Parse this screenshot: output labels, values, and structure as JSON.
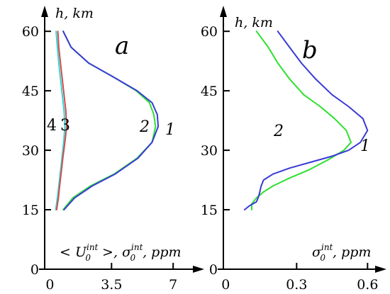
{
  "chart_data": [
    {
      "panel": "a",
      "type": "line",
      "ylabel": "h, km",
      "xlabel": "< U_0^int >, σ_0^int , ppm",
      "xlabel_parts": {
        "lt": "< ",
        "u": "U",
        "u_sub": "0",
        "u_sup": "int",
        "mid": " >, ",
        "s": "σ",
        "s_sub": "0",
        "s_sup": "int",
        "tail": ", ppm"
      },
      "xticks": [
        "0",
        "3.5",
        "7"
      ],
      "xtick_values": [
        0,
        3.5,
        7
      ],
      "yticks": [
        "0",
        "15",
        "30",
        "45",
        "60"
      ],
      "ytick_values": [
        0,
        15,
        30,
        45,
        60
      ],
      "xlim": [
        -0.3,
        8.0
      ],
      "ylim": [
        0,
        62
      ],
      "curve_labels": [
        "4",
        "3",
        "2",
        "1"
      ],
      "series": [
        {
          "label": "1",
          "color": "#3a3ad6",
          "x": [
            0.8,
            1.4,
            2.4,
            3.7,
            5.0,
            5.8,
            6.15,
            6.1,
            5.8,
            4.95,
            3.6,
            2.2,
            1.2,
            0.75
          ],
          "y": [
            15,
            18,
            21,
            24,
            28,
            32,
            36,
            39,
            42,
            45,
            48.5,
            52,
            56,
            60
          ]
        },
        {
          "label": "2",
          "color": "#2ee02e",
          "x": [
            0.75,
            1.3,
            2.3,
            3.65,
            4.95,
            5.8,
            6.0,
            5.9,
            5.65,
            4.9,
            3.6,
            2.2,
            1.2,
            0.75
          ],
          "y": [
            15,
            18,
            21,
            24,
            28,
            32,
            36,
            39,
            42,
            45,
            48.5,
            52,
            56,
            60
          ]
        },
        {
          "label": "3",
          "color": "#d84a4a",
          "x": [
            0.38,
            0.48,
            0.55,
            0.63,
            0.73,
            0.85,
            0.95,
            0.9,
            0.8,
            0.7,
            0.6,
            0.5,
            0.45
          ],
          "y": [
            15,
            18,
            21,
            24,
            28,
            32,
            36,
            40,
            44,
            48,
            52,
            56,
            60
          ]
        },
        {
          "label": "4",
          "color": "#33d6d6",
          "x": [
            0.33,
            0.42,
            0.5,
            0.58,
            0.68,
            0.78,
            0.85,
            0.8,
            0.7,
            0.6,
            0.5,
            0.42,
            0.35
          ],
          "y": [
            15,
            18,
            21,
            24,
            28,
            32,
            36,
            40,
            44,
            48,
            52,
            56,
            60
          ]
        }
      ]
    },
    {
      "panel": "b",
      "type": "line",
      "ylabel": "h, km",
      "xlabel": "σ_0^int , ppm",
      "xlabel_parts": {
        "s": "σ",
        "s_sub": "0",
        "s_sup": "int",
        "tail": ", ppm"
      },
      "xticks": [
        "0",
        "0.3",
        "0.6"
      ],
      "xtick_values": [
        0,
        0.3,
        0.6
      ],
      "yticks": [
        "0",
        "15",
        "30",
        "45",
        "60"
      ],
      "ytick_values": [
        0,
        15,
        30,
        45,
        60
      ],
      "xlim": [
        -0.01,
        0.68
      ],
      "ylim": [
        0,
        62
      ],
      "curve_labels": [
        "2",
        "1"
      ],
      "series": [
        {
          "label": "1",
          "color": "#3a3ad6",
          "x": [
            0.08,
            0.1,
            0.13,
            0.14,
            0.15,
            0.16,
            0.2,
            0.27,
            0.36,
            0.45,
            0.52,
            0.57,
            0.6,
            0.58,
            0.52,
            0.45,
            0.38,
            0.32,
            0.27,
            0.22
          ],
          "y": [
            15,
            16,
            17,
            18.5,
            21,
            22.5,
            24,
            25.5,
            27,
            28.5,
            30,
            32,
            35,
            38,
            41,
            44,
            48,
            52,
            56,
            60
          ]
        },
        {
          "label": "2",
          "color": "#2ee02e",
          "x": [
            0.11,
            0.11,
            0.13,
            0.16,
            0.2,
            0.27,
            0.35,
            0.43,
            0.5,
            0.53,
            0.51,
            0.46,
            0.4,
            0.33,
            0.27,
            0.22,
            0.18,
            0.13
          ],
          "y": [
            15,
            16.5,
            18,
            19.5,
            21,
            23,
            25,
            27.5,
            30,
            32,
            35,
            38,
            41,
            44,
            48,
            52,
            56,
            60
          ]
        }
      ]
    }
  ]
}
